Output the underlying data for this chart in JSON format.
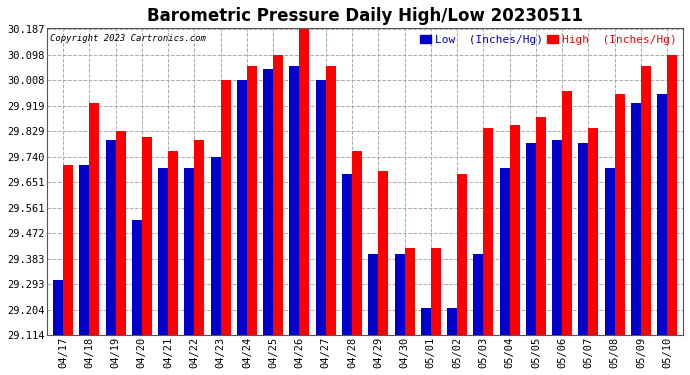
{
  "title": "Barometric Pressure Daily High/Low 20230511",
  "copyright": "Copyright 2023 Cartronics.com",
  "legend_low": "Low  (Inches/Hg)",
  "legend_high": "High  (Inches/Hg)",
  "dates": [
    "04/17",
    "04/18",
    "04/19",
    "04/20",
    "04/21",
    "04/22",
    "04/23",
    "04/24",
    "04/25",
    "04/26",
    "04/27",
    "04/28",
    "04/29",
    "04/30",
    "05/01",
    "05/02",
    "05/03",
    "05/04",
    "05/05",
    "05/06",
    "05/07",
    "05/08",
    "05/09",
    "05/10"
  ],
  "high": [
    29.71,
    29.93,
    29.83,
    29.81,
    29.76,
    29.8,
    30.008,
    30.06,
    30.098,
    30.187,
    30.06,
    29.762,
    29.69,
    29.42,
    29.42,
    29.68,
    29.84,
    29.85,
    29.88,
    29.97,
    29.84,
    29.96,
    30.06,
    30.098
  ],
  "low": [
    29.31,
    29.71,
    29.8,
    29.52,
    29.7,
    29.7,
    29.74,
    30.008,
    30.048,
    30.06,
    30.008,
    29.68,
    29.4,
    29.4,
    29.21,
    29.21,
    29.4,
    29.7,
    29.79,
    29.8,
    29.79,
    29.7,
    29.93,
    29.96
  ],
  "y_ticks": [
    29.114,
    29.204,
    29.293,
    29.383,
    29.472,
    29.561,
    29.651,
    29.74,
    29.829,
    29.919,
    30.008,
    30.098,
    30.187
  ],
  "y_min": 29.114,
  "y_max": 30.187,
  "bar_width": 0.38,
  "high_color": "#FF0000",
  "low_color": "#0000CC",
  "bg_color": "#FFFFFF",
  "grid_color": "#AAAAAA",
  "title_fontsize": 12,
  "tick_fontsize": 7.5,
  "label_fontsize": 8
}
